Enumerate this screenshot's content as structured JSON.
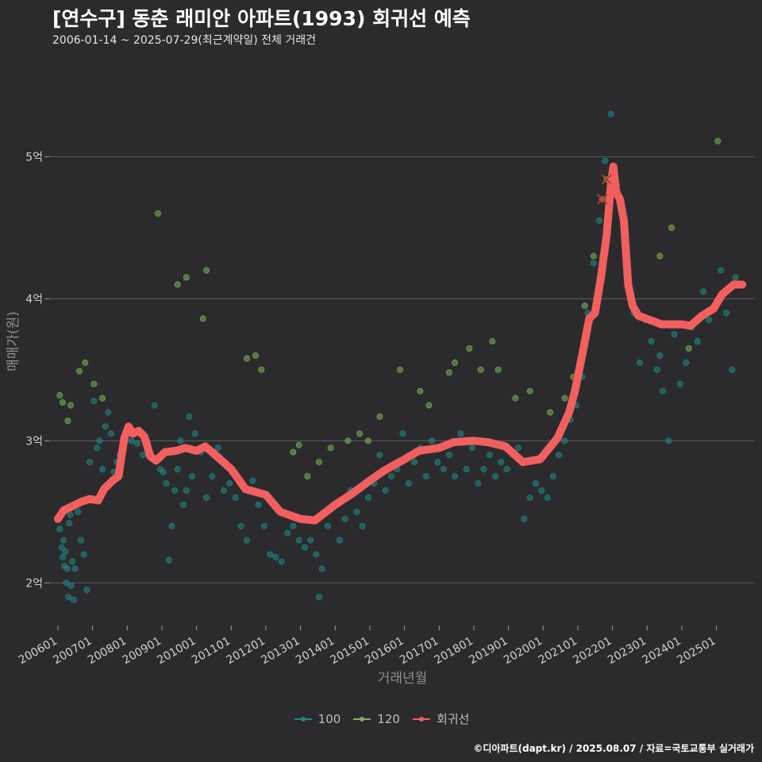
{
  "header": {
    "title": "[연수구] 동춘 래미안 아파트(1993) 회귀선 예측",
    "subtitle": "2006-01-14 ~ 2025-07-29(최근계약일) 전체 거래건"
  },
  "caption": "©디아파트(dapt.kr) / 2025.08.07 / 자료=국토교통부 실거래가",
  "colors": {
    "background": "#2b2b2d",
    "grid": "#5e5e5e",
    "series_100": "#1f8a86",
    "series_120": "#7cb35a",
    "regression": "#f25f5f",
    "highlight": "#c0352b"
  },
  "legend": [
    {
      "name": "100",
      "color": "#1f8a86"
    },
    {
      "name": "120",
      "color": "#7cb35a"
    },
    {
      "name": "회귀선",
      "color": "#f25f5f"
    }
  ],
  "chart_data": {
    "type": "scatter",
    "xlabel": "거래년월",
    "ylabel": "매매가(원)",
    "xlim": [
      "2005-10-01",
      "2026-02-01"
    ],
    "ylim": [
      1.7,
      5.6
    ],
    "yticks": [
      {
        "value": 2,
        "label": "2억"
      },
      {
        "value": 3,
        "label": "3억"
      },
      {
        "value": 4,
        "label": "4억"
      },
      {
        "value": 5,
        "label": "5억"
      }
    ],
    "xticks": [
      {
        "value": "2006-01-01",
        "label": "200601"
      },
      {
        "value": "2007-01-01",
        "label": "200701"
      },
      {
        "value": "2008-01-01",
        "label": "200801"
      },
      {
        "value": "2009-01-01",
        "label": "200901"
      },
      {
        "value": "2010-01-01",
        "label": "201001"
      },
      {
        "value": "2011-01-01",
        "label": "201101"
      },
      {
        "value": "2012-01-01",
        "label": "201201"
      },
      {
        "value": "2013-01-01",
        "label": "201301"
      },
      {
        "value": "2014-01-01",
        "label": "201401"
      },
      {
        "value": "2015-01-01",
        "label": "201501"
      },
      {
        "value": "2016-01-01",
        "label": "201601"
      },
      {
        "value": "2017-01-01",
        "label": "201701"
      },
      {
        "value": "2018-01-01",
        "label": "201801"
      },
      {
        "value": "2019-01-01",
        "label": "201901"
      },
      {
        "value": "2020-01-01",
        "label": "202001"
      },
      {
        "value": "2021-01-01",
        "label": "202101"
      },
      {
        "value": "2022-01-01",
        "label": "202201"
      },
      {
        "value": "2023-01-01",
        "label": "202301"
      },
      {
        "value": "2024-01-01",
        "label": "202401"
      },
      {
        "value": "2025-01-01",
        "label": "202501"
      }
    ],
    "grid": "horizontal",
    "legend_position": "bottom",
    "series": [
      {
        "name": "100",
        "points": [
          [
            "2006-01-20",
            2.38
          ],
          [
            "2006-02-10",
            2.25
          ],
          [
            "2006-02-20",
            2.18
          ],
          [
            "2006-03-01",
            2.3
          ],
          [
            "2006-03-10",
            2.12
          ],
          [
            "2006-03-20",
            2.22
          ],
          [
            "2006-04-01",
            2.0
          ],
          [
            "2006-04-10",
            2.1
          ],
          [
            "2006-04-20",
            1.9
          ],
          [
            "2006-05-01",
            2.42
          ],
          [
            "2006-05-10",
            2.48
          ],
          [
            "2006-05-20",
            1.98
          ],
          [
            "2006-06-01",
            2.15
          ],
          [
            "2006-06-15",
            1.88
          ],
          [
            "2006-07-01",
            2.1
          ],
          [
            "2006-08-01",
            2.5
          ],
          [
            "2006-09-01",
            2.3
          ],
          [
            "2006-10-01",
            2.2
          ],
          [
            "2006-11-01",
            1.95
          ],
          [
            "2006-12-01",
            2.85
          ],
          [
            "2007-01-15",
            3.28
          ],
          [
            "2007-02-15",
            2.95
          ],
          [
            "2007-03-15",
            3.0
          ],
          [
            "2007-04-15",
            2.8
          ],
          [
            "2007-05-15",
            3.1
          ],
          [
            "2007-06-15",
            3.2
          ],
          [
            "2007-07-15",
            3.05
          ],
          [
            "2007-08-15",
            2.78
          ],
          [
            "2007-09-15",
            2.85
          ],
          [
            "2007-10-15",
            2.9
          ],
          [
            "2007-12-15",
            3.05
          ],
          [
            "2008-02-15",
            3.0
          ],
          [
            "2008-04-15",
            2.98
          ],
          [
            "2008-06-15",
            2.9
          ],
          [
            "2008-08-15",
            2.95
          ],
          [
            "2008-10-15",
            3.25
          ],
          [
            "2008-12-15",
            2.8
          ],
          [
            "2009-01-15",
            2.78
          ],
          [
            "2009-02-15",
            2.7
          ],
          [
            "2009-03-15",
            2.16
          ],
          [
            "2009-04-15",
            2.4
          ],
          [
            "2009-05-15",
            2.65
          ],
          [
            "2009-06-15",
            2.8
          ],
          [
            "2009-07-15",
            3.0
          ],
          [
            "2009-08-15",
            2.55
          ],
          [
            "2009-09-15",
            2.65
          ],
          [
            "2009-10-15",
            3.17
          ],
          [
            "2009-11-15",
            2.75
          ],
          [
            "2009-12-15",
            3.05
          ],
          [
            "2010-02-15",
            2.92
          ],
          [
            "2010-04-15",
            2.6
          ],
          [
            "2010-06-15",
            2.75
          ],
          [
            "2010-08-15",
            2.95
          ],
          [
            "2010-10-15",
            2.65
          ],
          [
            "2010-12-15",
            2.7
          ],
          [
            "2011-02-15",
            2.6
          ],
          [
            "2011-04-15",
            2.4
          ],
          [
            "2011-06-15",
            2.3
          ],
          [
            "2011-08-15",
            2.72
          ],
          [
            "2011-10-15",
            2.55
          ],
          [
            "2011-12-15",
            2.4
          ],
          [
            "2012-02-15",
            2.2
          ],
          [
            "2012-04-15",
            2.18
          ],
          [
            "2012-06-15",
            2.15
          ],
          [
            "2012-08-15",
            2.35
          ],
          [
            "2012-10-15",
            2.4
          ],
          [
            "2012-12-15",
            2.3
          ],
          [
            "2013-02-15",
            2.25
          ],
          [
            "2013-04-15",
            2.3
          ],
          [
            "2013-06-15",
            2.2
          ],
          [
            "2013-07-15",
            1.9
          ],
          [
            "2013-08-15",
            2.1
          ],
          [
            "2013-10-15",
            2.4
          ],
          [
            "2013-12-15",
            2.55
          ],
          [
            "2014-02-15",
            2.3
          ],
          [
            "2014-04-15",
            2.45
          ],
          [
            "2014-06-15",
            2.65
          ],
          [
            "2014-08-15",
            2.5
          ],
          [
            "2014-10-15",
            2.4
          ],
          [
            "2014-12-15",
            2.6
          ],
          [
            "2015-02-15",
            2.7
          ],
          [
            "2015-04-15",
            2.9
          ],
          [
            "2015-06-15",
            2.65
          ],
          [
            "2015-08-15",
            2.75
          ],
          [
            "2015-10-15",
            2.8
          ],
          [
            "2015-12-15",
            3.05
          ],
          [
            "2016-02-15",
            2.7
          ],
          [
            "2016-04-15",
            2.85
          ],
          [
            "2016-06-15",
            2.95
          ],
          [
            "2016-08-15",
            2.75
          ],
          [
            "2016-10-15",
            3.0
          ],
          [
            "2016-12-15",
            2.85
          ],
          [
            "2017-02-15",
            2.8
          ],
          [
            "2017-04-15",
            2.9
          ],
          [
            "2017-06-15",
            2.75
          ],
          [
            "2017-08-15",
            3.05
          ],
          [
            "2017-10-15",
            2.8
          ],
          [
            "2017-12-15",
            2.95
          ],
          [
            "2018-02-15",
            2.7
          ],
          [
            "2018-04-15",
            2.8
          ],
          [
            "2018-06-15",
            2.9
          ],
          [
            "2018-08-15",
            2.75
          ],
          [
            "2018-10-15",
            2.85
          ],
          [
            "2018-12-15",
            2.8
          ],
          [
            "2019-02-15",
            2.9
          ],
          [
            "2019-04-15",
            2.95
          ],
          [
            "2019-06-15",
            2.45
          ],
          [
            "2019-08-15",
            2.6
          ],
          [
            "2019-10-15",
            2.7
          ],
          [
            "2019-12-15",
            2.65
          ],
          [
            "2020-02-15",
            2.6
          ],
          [
            "2020-04-15",
            2.75
          ],
          [
            "2020-06-15",
            2.9
          ],
          [
            "2020-08-15",
            3.0
          ],
          [
            "2020-10-15",
            3.15
          ],
          [
            "2020-12-15",
            3.25
          ],
          [
            "2021-02-15",
            3.45
          ],
          [
            "2021-04-15",
            3.9
          ],
          [
            "2021-06-15",
            4.25
          ],
          [
            "2021-08-15",
            4.55
          ],
          [
            "2021-10-15",
            4.97
          ],
          [
            "2021-12-15",
            5.3
          ],
          [
            "2022-02-15",
            4.8
          ],
          [
            "2022-04-15",
            4.6
          ],
          [
            "2022-06-15",
            4.2
          ],
          [
            "2022-08-15",
            3.9
          ],
          [
            "2022-10-15",
            3.55
          ],
          [
            "2022-12-15",
            3.85
          ],
          [
            "2023-02-15",
            3.7
          ],
          [
            "2023-04-15",
            3.5
          ],
          [
            "2023-05-15",
            3.6
          ],
          [
            "2023-06-15",
            3.35
          ],
          [
            "2023-08-15",
            3.0
          ],
          [
            "2023-10-15",
            3.75
          ],
          [
            "2023-12-15",
            3.4
          ],
          [
            "2024-02-15",
            3.55
          ],
          [
            "2024-04-15",
            3.8
          ],
          [
            "2024-06-15",
            3.7
          ],
          [
            "2024-08-15",
            4.05
          ],
          [
            "2024-10-15",
            3.85
          ],
          [
            "2024-12-15",
            3.95
          ],
          [
            "2025-02-15",
            4.2
          ],
          [
            "2025-04-15",
            3.9
          ],
          [
            "2025-06-15",
            3.5
          ],
          [
            "2025-07-20",
            4.15
          ]
        ]
      },
      {
        "name": "120",
        "points": [
          [
            "2006-01-20",
            3.32
          ],
          [
            "2006-02-20",
            3.27
          ],
          [
            "2006-04-15",
            3.14
          ],
          [
            "2006-05-15",
            3.25
          ],
          [
            "2006-08-15",
            3.49
          ],
          [
            "2006-10-15",
            3.55
          ],
          [
            "2007-01-15",
            3.4
          ],
          [
            "2007-04-15",
            3.3
          ],
          [
            "2008-11-20",
            4.6
          ],
          [
            "2009-06-15",
            4.1
          ],
          [
            "2009-09-15",
            4.15
          ],
          [
            "2010-03-10",
            3.86
          ],
          [
            "2010-04-15",
            4.2
          ],
          [
            "2011-06-15",
            3.58
          ],
          [
            "2011-09-15",
            3.6
          ],
          [
            "2011-11-15",
            3.5
          ],
          [
            "2012-10-15",
            2.92
          ],
          [
            "2012-12-15",
            2.97
          ],
          [
            "2013-03-15",
            2.75
          ],
          [
            "2013-07-15",
            2.85
          ],
          [
            "2013-11-15",
            2.95
          ],
          [
            "2014-05-15",
            3.0
          ],
          [
            "2014-09-15",
            3.05
          ],
          [
            "2014-12-15",
            3.0
          ],
          [
            "2015-04-15",
            3.17
          ],
          [
            "2015-11-15",
            3.5
          ],
          [
            "2016-06-15",
            3.35
          ],
          [
            "2016-09-15",
            3.25
          ],
          [
            "2017-04-15",
            3.48
          ],
          [
            "2017-06-15",
            3.55
          ],
          [
            "2017-11-15",
            3.65
          ],
          [
            "2018-03-15",
            3.5
          ],
          [
            "2018-07-15",
            3.7
          ],
          [
            "2018-09-15",
            3.5
          ],
          [
            "2019-03-15",
            3.3
          ],
          [
            "2019-08-15",
            3.35
          ],
          [
            "2020-03-15",
            3.2
          ],
          [
            "2020-08-15",
            3.3
          ],
          [
            "2020-11-15",
            3.45
          ],
          [
            "2021-03-15",
            3.95
          ],
          [
            "2021-06-15",
            4.3
          ],
          [
            "2023-05-15",
            4.3
          ],
          [
            "2023-09-15",
            4.5
          ],
          [
            "2024-03-15",
            3.65
          ],
          [
            "2025-01-15",
            5.11
          ]
        ]
      },
      {
        "name": "highlight",
        "points": [
          [
            "2021-09-15",
            4.7
          ],
          [
            "2021-11-01",
            4.84
          ]
        ]
      }
    ],
    "regression": {
      "name": "회귀선",
      "points": [
        [
          "2006-01-01",
          2.45
        ],
        [
          "2006-03-01",
          2.51
        ],
        [
          "2006-06-01",
          2.54
        ],
        [
          "2006-09-01",
          2.57
        ],
        [
          "2006-12-01",
          2.59
        ],
        [
          "2007-03-01",
          2.58
        ],
        [
          "2007-05-01",
          2.66
        ],
        [
          "2007-08-01",
          2.72
        ],
        [
          "2007-10-01",
          2.75
        ],
        [
          "2007-12-01",
          3.02
        ],
        [
          "2008-01-15",
          3.1
        ],
        [
          "2008-03-01",
          3.05
        ],
        [
          "2008-05-01",
          3.07
        ],
        [
          "2008-07-01",
          3.03
        ],
        [
          "2008-09-01",
          2.89
        ],
        [
          "2008-11-01",
          2.86
        ],
        [
          "2009-02-01",
          2.92
        ],
        [
          "2009-06-01",
          2.93
        ],
        [
          "2009-09-01",
          2.95
        ],
        [
          "2010-01-01",
          2.93
        ],
        [
          "2010-04-01",
          2.96
        ],
        [
          "2010-07-01",
          2.91
        ],
        [
          "2011-01-01",
          2.8
        ],
        [
          "2011-06-01",
          2.66
        ],
        [
          "2012-01-01",
          2.62
        ],
        [
          "2012-06-01",
          2.5
        ],
        [
          "2013-01-01",
          2.45
        ],
        [
          "2013-06-01",
          2.44
        ],
        [
          "2014-01-01",
          2.55
        ],
        [
          "2014-07-01",
          2.63
        ],
        [
          "2015-01-01",
          2.72
        ],
        [
          "2015-06-01",
          2.79
        ],
        [
          "2016-01-01",
          2.87
        ],
        [
          "2016-06-01",
          2.93
        ],
        [
          "2017-01-01",
          2.95
        ],
        [
          "2017-06-01",
          2.99
        ],
        [
          "2018-01-01",
          3.0
        ],
        [
          "2018-06-01",
          2.99
        ],
        [
          "2018-12-01",
          2.96
        ],
        [
          "2019-06-01",
          2.85
        ],
        [
          "2019-12-01",
          2.87
        ],
        [
          "2020-06-01",
          3.02
        ],
        [
          "2020-10-01",
          3.2
        ],
        [
          "2020-12-01",
          3.35
        ],
        [
          "2021-03-01",
          3.65
        ],
        [
          "2021-05-01",
          3.86
        ],
        [
          "2021-07-01",
          3.9
        ],
        [
          "2021-09-01",
          4.15
        ],
        [
          "2021-11-01",
          4.45
        ],
        [
          "2021-12-15",
          4.8
        ],
        [
          "2022-01-10",
          4.93
        ],
        [
          "2022-02-10",
          4.75
        ],
        [
          "2022-03-20",
          4.7
        ],
        [
          "2022-05-01",
          4.55
        ],
        [
          "2022-06-15",
          4.1
        ],
        [
          "2022-08-01",
          3.95
        ],
        [
          "2022-10-01",
          3.88
        ],
        [
          "2023-02-01",
          3.85
        ],
        [
          "2023-06-01",
          3.82
        ],
        [
          "2024-01-01",
          3.82
        ],
        [
          "2024-04-01",
          3.81
        ],
        [
          "2024-08-01",
          3.88
        ],
        [
          "2024-12-01",
          3.93
        ],
        [
          "2025-03-01",
          4.03
        ],
        [
          "2025-07-01",
          4.1
        ],
        [
          "2025-10-01",
          4.1
        ]
      ]
    }
  }
}
